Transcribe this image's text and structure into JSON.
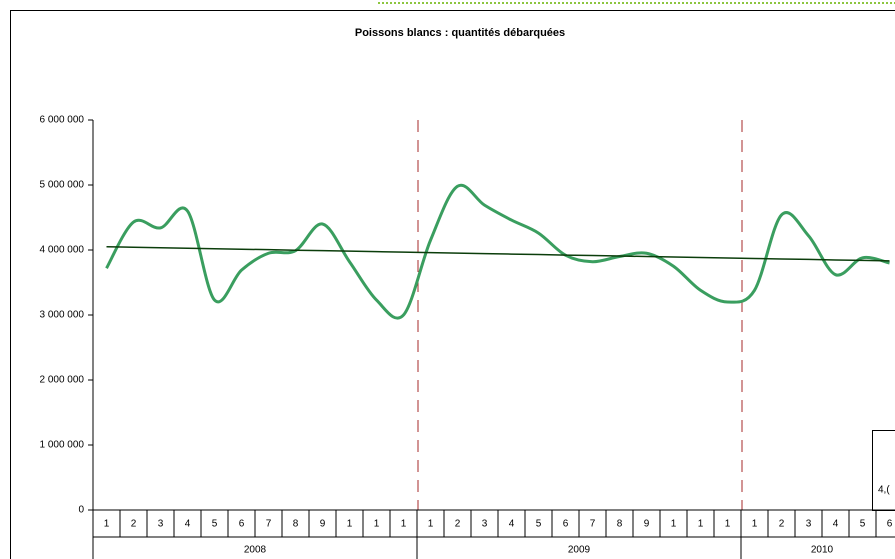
{
  "chart_data": {
    "type": "line",
    "title": "Poissons blancs : quantités débarquées",
    "categories": [
      "1",
      "2",
      "3",
      "4",
      "5",
      "6",
      "7",
      "8",
      "9",
      "1",
      "1",
      "1",
      "1",
      "2",
      "3",
      "4",
      "5",
      "6",
      "7",
      "8",
      "9",
      "1",
      "1",
      "1",
      "1",
      "2",
      "3",
      "4",
      "5",
      "6"
    ],
    "years": [
      "2008",
      "2009",
      "2010"
    ],
    "series": [
      {
        "color": "#3a9e5f",
        "smooth": true,
        "values": [
          3720000,
          4430000,
          4340000,
          4600000,
          3230000,
          3690000,
          3950000,
          3990000,
          4400000,
          3820000,
          3230000,
          3000000,
          4150000,
          4980000,
          4690000,
          4460000,
          4260000,
          3920000,
          3820000,
          3900000,
          3950000,
          3750000,
          3380000,
          3200000,
          3380000,
          4540000,
          4220000,
          3620000,
          3880000,
          3800000
        ]
      },
      {
        "color": "#0b3d0b",
        "smooth": false,
        "values": [
          4050000,
          4042000,
          4035000,
          4027000,
          4020000,
          4012000,
          4005000,
          3997000,
          3990000,
          3982000,
          3975000,
          3967000,
          3960000,
          3952000,
          3945000,
          3937000,
          3930000,
          3922000,
          3915000,
          3907000,
          3900000,
          3892000,
          3885000,
          3877000,
          3870000,
          3862000,
          3855000,
          3847000,
          3840000,
          3832000
        ]
      }
    ],
    "ylim": [
      0,
      6000000
    ],
    "yticks": [
      {
        "value": 0,
        "label": "0"
      },
      {
        "value": 1000000,
        "label": "1 000 000"
      },
      {
        "value": 2000000,
        "label": "2 000 000"
      },
      {
        "value": 3000000,
        "label": "3 000 000"
      },
      {
        "value": 4000000,
        "label": "4 000 000"
      },
      {
        "value": 5000000,
        "label": "5 000 000"
      },
      {
        "value": 6000000,
        "label": "6 000 000"
      }
    ],
    "annotation": "4,("
  }
}
